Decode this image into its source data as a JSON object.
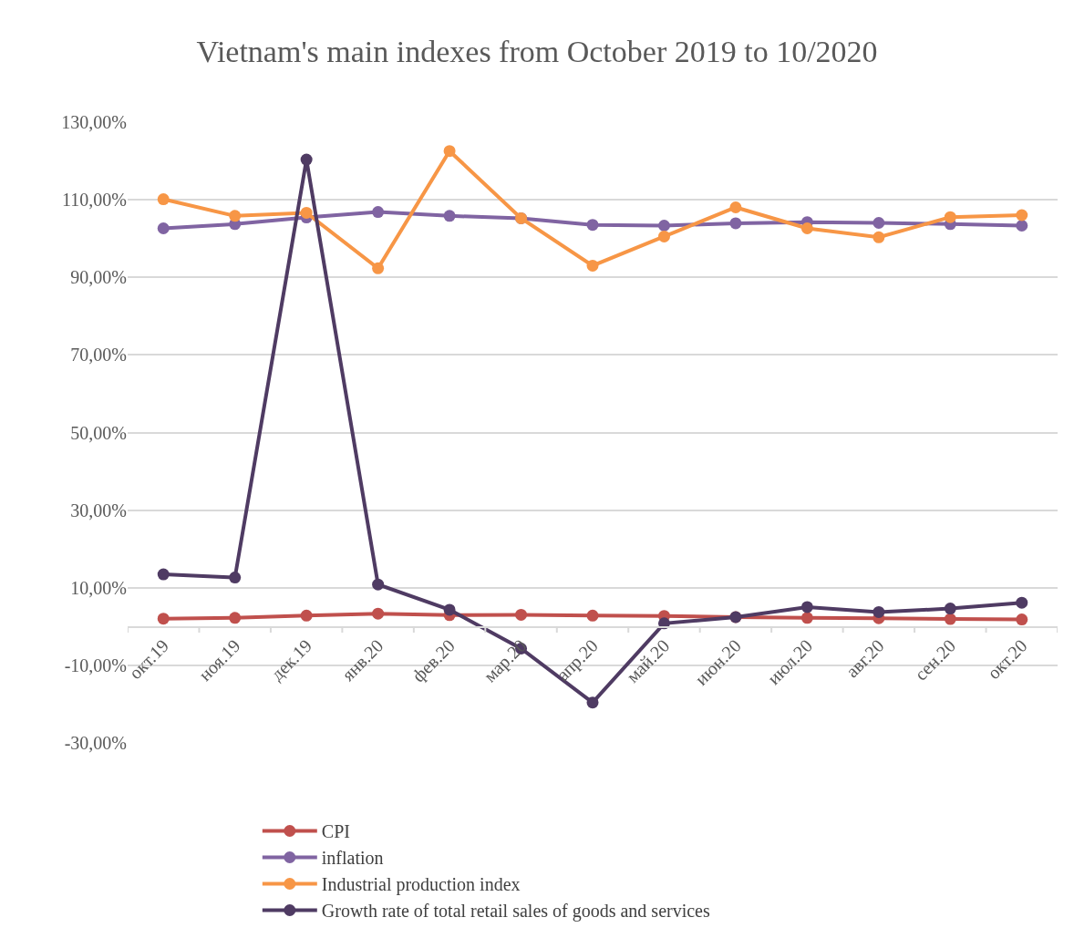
{
  "chart_data": {
    "type": "line",
    "title": "Vietnam's main indexes from October 2019 to 10/2020",
    "categories": [
      "окт.19",
      "ноя.19",
      "дек.19",
      "янв.20",
      "фев.20",
      "мар.20",
      "апр.20",
      "май.20",
      "июн.20",
      "июл.20",
      "авг.20",
      "сен.20",
      "окт.20"
    ],
    "series": [
      {
        "name": "CPI",
        "color": "#c0504d",
        "values": [
          2.1,
          2.3,
          2.9,
          3.4,
          3.0,
          3.1,
          2.9,
          2.8,
          2.5,
          2.3,
          2.2,
          2.0,
          1.9
        ]
      },
      {
        "name": "inflation",
        "color": "#8064a2",
        "values": [
          102.6,
          103.7,
          105.4,
          106.8,
          105.8,
          105.2,
          103.5,
          103.3,
          103.9,
          104.2,
          104.0,
          103.7,
          103.3
        ]
      },
      {
        "name": "Industrial production index",
        "color": "#f79646",
        "values": [
          110.1,
          105.8,
          106.6,
          92.3,
          122.5,
          105.2,
          93.0,
          100.5,
          108.0,
          102.6,
          100.3,
          105.5,
          106.0
        ]
      },
      {
        "name": "Growth rate of total retail sales of goods and services",
        "color": "#4f3b63",
        "values": [
          13.5,
          12.7,
          120.3,
          10.9,
          4.4,
          -5.6,
          -19.5,
          0.9,
          2.5,
          5.1,
          3.8,
          4.7,
          6.2
        ]
      }
    ],
    "ylim": [
      -30,
      130
    ],
    "yticks": [
      {
        "value": -30,
        "label": "-30,00%"
      },
      {
        "value": -10,
        "label": "-10,00%"
      },
      {
        "value": 10,
        "label": "10,00%"
      },
      {
        "value": 30,
        "label": "30,00%"
      },
      {
        "value": 50,
        "label": "50,00%"
      },
      {
        "value": 70,
        "label": "70,00%"
      },
      {
        "value": 90,
        "label": "90,00%"
      },
      {
        "value": 110,
        "label": "110,00%"
      },
      {
        "value": 130,
        "label": "130,00%"
      }
    ],
    "grid": "y",
    "legend": "bottom",
    "marker": "circle",
    "line_style": "solid"
  }
}
